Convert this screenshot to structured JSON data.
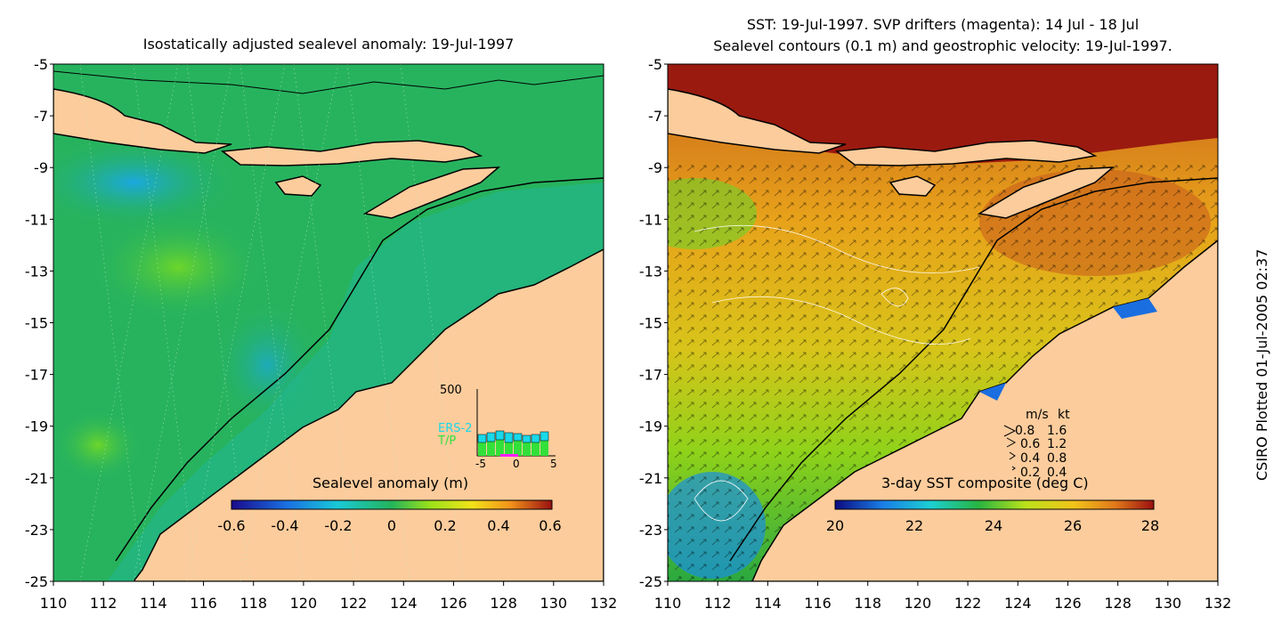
{
  "left_panel": {
    "title": "Isostatically adjusted sealevel anomaly: 19-Jul-1997",
    "colorbar": {
      "label": "Sealevel anomaly (m)",
      "ticks": [
        "-0.6",
        "-0.4",
        "-0.2",
        "0",
        "0.2",
        "0.4",
        "0.6"
      ]
    },
    "inset": {
      "y_label": "500",
      "ers2_label": "ERS-2",
      "tp_label": "T/P",
      "x_ticks": [
        "-5",
        "0",
        "5"
      ]
    }
  },
  "right_panel": {
    "title_line1": "SST: 19-Jul-1997. SVP drifters (magenta): 14 Jul - 18 Jul",
    "title_line2": "Sealevel contours (0.1 m) and geostrophic velocity: 19-Jul-1997.",
    "colorbar": {
      "label": "3-day SST composite (deg C)",
      "ticks": [
        "20",
        "22",
        "24",
        "26",
        "28"
      ]
    },
    "velocity_key": {
      "header": [
        "m/s",
        "kt"
      ],
      "rows": [
        [
          "0.8",
          "1.6"
        ],
        [
          "0.6",
          "1.2"
        ],
        [
          "0.4",
          "0.8"
        ],
        [
          "0.2",
          "0.4"
        ]
      ]
    }
  },
  "axes": {
    "y_ticks": [
      "-5",
      "-7",
      "-9",
      "-11",
      "-13",
      "-15",
      "-17",
      "-19",
      "-21",
      "-23",
      "-25"
    ],
    "x_ticks": [
      "110",
      "112",
      "114",
      "116",
      "118",
      "120",
      "122",
      "124",
      "126",
      "128",
      "130",
      "132"
    ]
  },
  "credit": "CSIRO Plotted 01-Jul-2005 02:37",
  "colors": {
    "land": "#fccc9c",
    "ocean_sla": "#27b35e",
    "ocean_sst": "#d5861f"
  }
}
